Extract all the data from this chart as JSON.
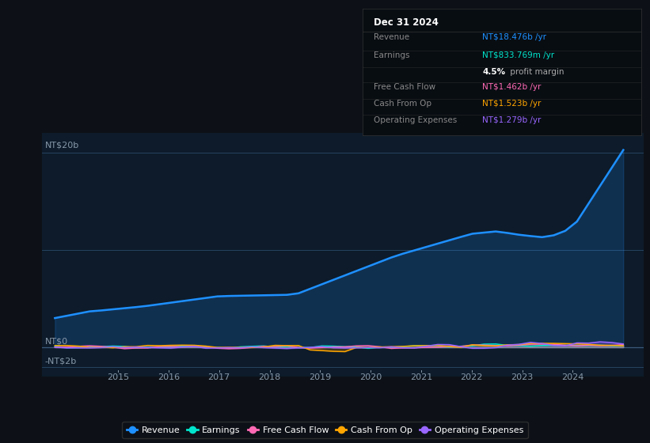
{
  "bg_color": "#0d1117",
  "plot_bg_color": "#0d1b2a",
  "text_color": "#8899aa",
  "ylabel_20b": "NT$20b",
  "ylabel_0": "NT$0",
  "ylabel_neg2b": "-NT$2b",
  "ylim": [
    -3000000000,
    22000000000
  ],
  "xlim": [
    2013.5,
    2025.4
  ],
  "revenue_color": "#1e90ff",
  "earnings_color": "#00e5cc",
  "fcf_color": "#ff69b4",
  "cashfromop_color": "#ffa500",
  "opex_color": "#9966ff",
  "info_box": {
    "title": "Dec 31 2024",
    "revenue_label": "Revenue",
    "revenue_value": "NT$18.476b /yr",
    "revenue_color": "#1e90ff",
    "earnings_label": "Earnings",
    "earnings_value": "NT$833.769m /yr",
    "earnings_color": "#00e5cc",
    "fcf_label": "Free Cash Flow",
    "fcf_value": "NT$1.462b /yr",
    "fcf_color": "#ff69b4",
    "cashfromop_label": "Cash From Op",
    "cashfromop_value": "NT$1.523b /yr",
    "cashfromop_color": "#ffa500",
    "opex_label": "Operating Expenses",
    "opex_value": "NT$1.279b /yr",
    "opex_color": "#9966ff"
  },
  "legend_items": [
    {
      "label": "Revenue",
      "color": "#1e90ff"
    },
    {
      "label": "Earnings",
      "color": "#00e5cc"
    },
    {
      "label": "Free Cash Flow",
      "color": "#ff69b4"
    },
    {
      "label": "Cash From Op",
      "color": "#ffa500"
    },
    {
      "label": "Operating Expenses",
      "color": "#9966ff"
    }
  ]
}
